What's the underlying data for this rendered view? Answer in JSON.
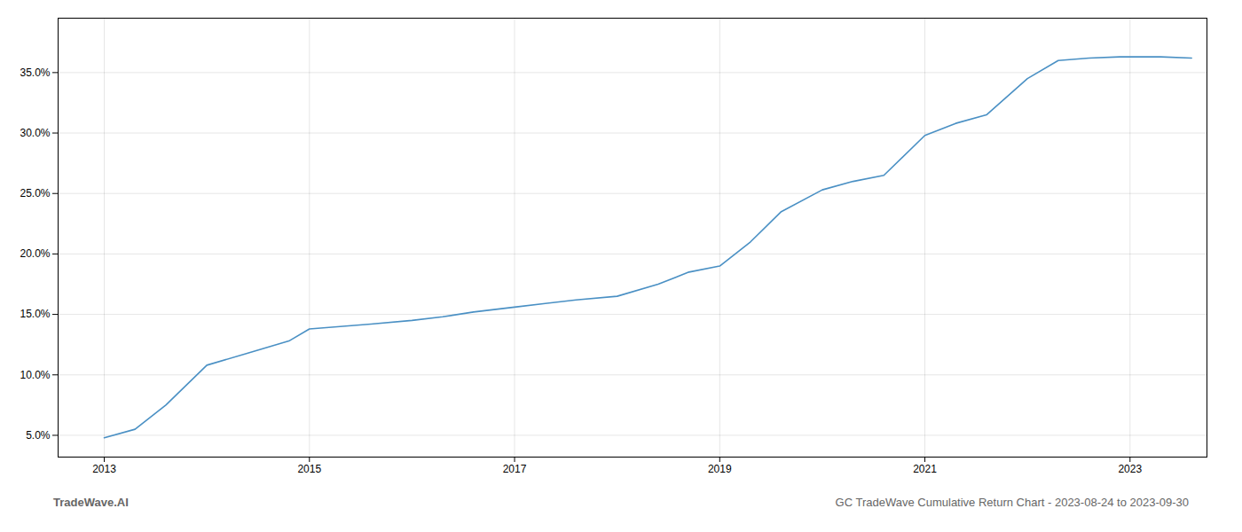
{
  "chart_data": {
    "type": "line",
    "x": [
      2013.0,
      2013.3,
      2013.6,
      2014.0,
      2014.4,
      2014.8,
      2015.0,
      2015.3,
      2015.6,
      2016.0,
      2016.3,
      2016.6,
      2017.0,
      2017.3,
      2017.6,
      2018.0,
      2018.4,
      2018.7,
      2019.0,
      2019.3,
      2019.6,
      2020.0,
      2020.3,
      2020.6,
      2021.0,
      2021.3,
      2021.6,
      2022.0,
      2022.3,
      2022.6,
      2022.9,
      2023.0,
      2023.3,
      2023.6
    ],
    "values": [
      4.8,
      5.5,
      7.5,
      10.8,
      11.8,
      12.8,
      13.8,
      14.0,
      14.2,
      14.5,
      14.8,
      15.2,
      15.6,
      15.9,
      16.2,
      16.5,
      17.5,
      18.5,
      19.0,
      21.0,
      23.5,
      25.3,
      26.0,
      26.5,
      29.8,
      30.8,
      31.5,
      34.5,
      36.0,
      36.2,
      36.3,
      36.3,
      36.3,
      36.2
    ],
    "color": "#4a90c4",
    "xlim": [
      2012.55,
      2023.75
    ],
    "xticks": [
      2013,
      2015,
      2017,
      2019,
      2021,
      2023
    ],
    "ylim": [
      3.2,
      39.5
    ],
    "yticks": [
      {
        "value": 5.0,
        "label": "5.0%"
      },
      {
        "value": 10.0,
        "label": "10.0%"
      },
      {
        "value": 15.0,
        "label": "15.0%"
      },
      {
        "value": 20.0,
        "label": "20.0%"
      },
      {
        "value": 25.0,
        "label": "25.0%"
      },
      {
        "value": 30.0,
        "label": "30.0%"
      },
      {
        "value": 35.0,
        "label": "35.0%"
      }
    ],
    "grid": true,
    "annotations": [
      "TradeWave.AI",
      "GC TradeWave Cumulative Return Chart - 2023-08-24 to 2023-09-30"
    ]
  }
}
